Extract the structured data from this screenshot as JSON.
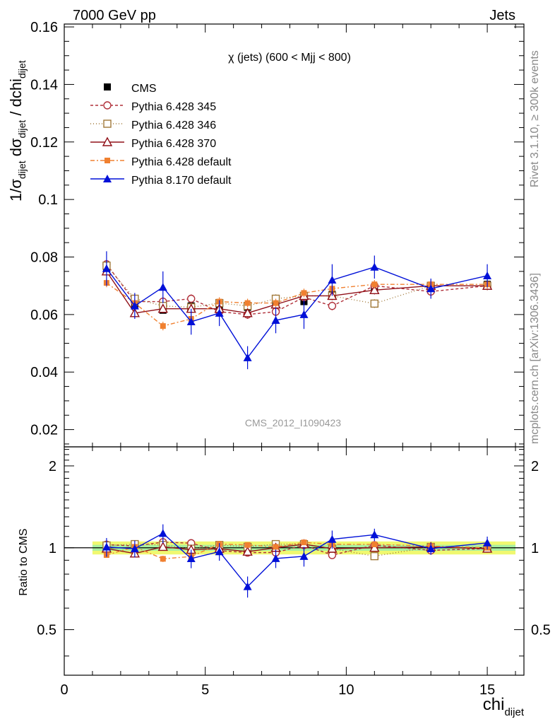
{
  "header": {
    "left": "7000 GeV pp",
    "right": "Jets"
  },
  "side": {
    "rivet": "Rivet 3.1.10, ≥ 300k events",
    "mcplots": "mcplots.cern.ch [arXiv:1306.3436]"
  },
  "chart_data": {
    "type": "line",
    "title": "χ (jets) (600 < Mjj <  800)",
    "analysis_label": "CMS_2012_I1090423",
    "ylabel": "1/σ_dijet dσ_dijet / dchi_dijet",
    "ratio_ylabel": "Ratio to CMS",
    "xlabel": "chi_dijet",
    "xlim": [
      0,
      16.3
    ],
    "ylim": [
      0.014,
      0.161
    ],
    "ratio_ylim": [
      0.34,
      2.35
    ],
    "x_ticks": [
      "0",
      "5",
      "10",
      "15"
    ],
    "y_ticks": [
      "0.02",
      "0.04",
      "0.06",
      "0.08",
      "0.1",
      "0.12",
      "0.14",
      "0.16"
    ],
    "ratio_ticks": [
      "0.5",
      "1",
      "2"
    ],
    "legend_placement": "top-left",
    "x": [
      1.5,
      2.5,
      3.5,
      4.5,
      5.5,
      6.5,
      7.5,
      8.5,
      9.5,
      11.0,
      13.0,
      15.0
    ],
    "reference": {
      "name": "CMS",
      "values": [
        0.0755,
        0.0635,
        0.0615,
        0.063,
        0.0625,
        0.0625,
        0.0635,
        0.0645,
        0.067,
        0.0685,
        0.0695,
        0.0705
      ],
      "band_inner": 0.025,
      "band_outer": 0.055
    },
    "series": [
      {
        "name": "Pythia 6.428 345",
        "color": "#b0303a",
        "dash": "4,3",
        "marker": "circle-open",
        "values": [
          0.0775,
          0.0645,
          0.0645,
          0.0655,
          0.061,
          0.06,
          0.061,
          0.066,
          0.063,
          0.07,
          0.068,
          0.07
        ]
      },
      {
        "name": "Pythia 6.428 346",
        "color": "#a07838",
        "dash": "1,3",
        "marker": "square-open",
        "values": [
          0.077,
          0.0655,
          0.063,
          0.0625,
          0.064,
          0.063,
          0.0655,
          0.0665,
          0.0665,
          0.0638,
          0.07,
          0.07
        ]
      },
      {
        "name": "Pythia 6.428 370",
        "color": "#901018",
        "dash": "",
        "marker": "triangle-open",
        "values": [
          0.075,
          0.0605,
          0.062,
          0.062,
          0.062,
          0.0605,
          0.0635,
          0.0665,
          0.0665,
          0.0685,
          0.07,
          0.07
        ]
      },
      {
        "name": "Pythia 6.428 default",
        "color": "#f08030",
        "dash": "6,3,2,3",
        "marker": "square-filled",
        "values": [
          0.071,
          0.064,
          0.056,
          0.0585,
          0.0645,
          0.064,
          0.064,
          0.0675,
          0.069,
          0.0705,
          0.0705,
          0.0705
        ]
      },
      {
        "name": "Pythia 8.170 default",
        "color": "#0010d8",
        "dash": "",
        "marker": "triangle-filled",
        "values": [
          0.076,
          0.063,
          0.0695,
          0.0575,
          0.0605,
          0.045,
          0.058,
          0.06,
          0.072,
          0.0765,
          0.069,
          0.0735
        ],
        "errors": [
          0.006,
          0.0045,
          0.0055,
          0.0045,
          0.0045,
          0.004,
          0.0045,
          0.005,
          0.0055,
          0.004,
          0.0035,
          0.004
        ]
      }
    ]
  }
}
